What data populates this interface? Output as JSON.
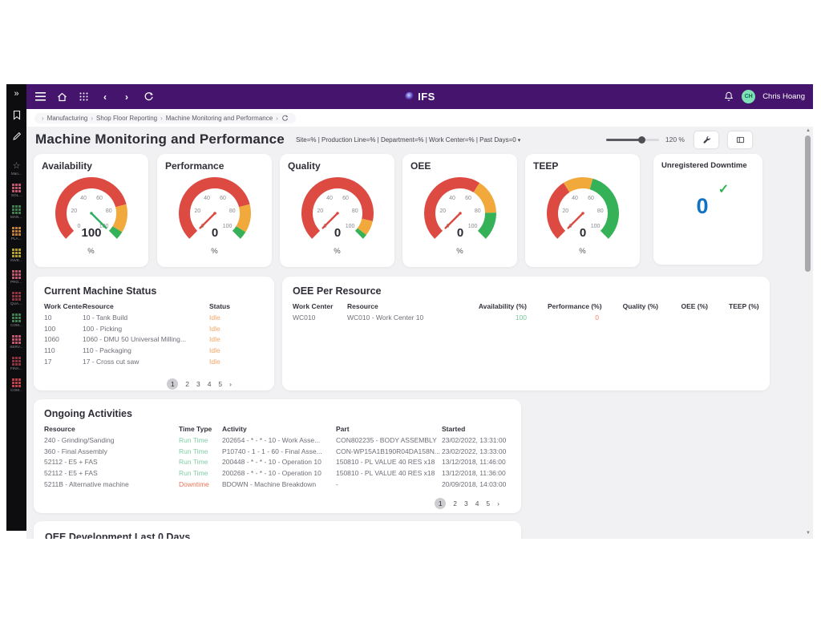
{
  "topbar": {
    "brand": "IFS",
    "user_initials": "CH",
    "user_name": "Chris Hoang"
  },
  "breadcrumb": {
    "separator": "›",
    "items": [
      "Manufacturing",
      "Shop Floor Reporting",
      "Machine Monitoring and Performance"
    ]
  },
  "header": {
    "title": "Machine Monitoring and Performance",
    "filters": "Site=% | Production Line=% | Department=% | Work Center=% | Past Days=0",
    "filters_caret": "▾",
    "zoom_label": "120 %"
  },
  "sidebar": {
    "expand_icon": "»",
    "items": [
      {
        "label": "Man...",
        "icon": "star",
        "color": "#9a9aa0"
      },
      {
        "label": "SOL...",
        "icon": "grid",
        "color": "#c2566e"
      },
      {
        "label": "MAN...",
        "icon": "grid",
        "color": "#3f7f50"
      },
      {
        "label": "PLA...",
        "icon": "grid",
        "color": "#bf7e33"
      },
      {
        "label": "INVE...",
        "icon": "grid",
        "color": "#b3a02b"
      },
      {
        "label": "PRO...",
        "icon": "grid",
        "color": "#c2566e"
      },
      {
        "label": "QUA...",
        "icon": "grid",
        "color": "#8e3140"
      },
      {
        "label": "COM...",
        "icon": "grid",
        "color": "#3f7f50"
      },
      {
        "label": "SERV...",
        "icon": "grid",
        "color": "#c2566e"
      },
      {
        "label": "FINA...",
        "icon": "grid",
        "color": "#8e3140"
      },
      {
        "label": "COM...",
        "icon": "grid",
        "color": "#bf4048"
      }
    ]
  },
  "chart_data": [
    {
      "type": "gauge",
      "title": "Availability",
      "value": 100,
      "unit": "%",
      "min": 0,
      "max": 100,
      "ticks": [
        0,
        20,
        40,
        60,
        80,
        100
      ],
      "needle_color": "#2eae5f",
      "bands": [
        {
          "from": 0,
          "to": 78,
          "color": "#dc4a41"
        },
        {
          "from": 78,
          "to": 95,
          "color": "#f2a93b"
        },
        {
          "from": 95,
          "to": 100,
          "color": "#35b257"
        }
      ]
    },
    {
      "type": "gauge",
      "title": "Performance",
      "value": 0,
      "unit": "%",
      "min": 0,
      "max": 100,
      "ticks": [
        0,
        20,
        40,
        60,
        80,
        100
      ],
      "needle_color": "#dc4a41",
      "bands": [
        {
          "from": 0,
          "to": 78,
          "color": "#dc4a41"
        },
        {
          "from": 78,
          "to": 95,
          "color": "#f2a93b"
        },
        {
          "from": 95,
          "to": 100,
          "color": "#35b257"
        }
      ]
    },
    {
      "type": "gauge",
      "title": "Quality",
      "value": 0,
      "unit": "%",
      "min": 0,
      "max": 100,
      "ticks": [
        0,
        20,
        40,
        60,
        80,
        100
      ],
      "needle_color": "#dc4a41",
      "bands": [
        {
          "from": 0,
          "to": 88,
          "color": "#dc4a41"
        },
        {
          "from": 88,
          "to": 97,
          "color": "#f2a93b"
        },
        {
          "from": 97,
          "to": 100,
          "color": "#35b257"
        }
      ]
    },
    {
      "type": "gauge",
      "title": "OEE",
      "value": 0,
      "unit": "%",
      "min": 0,
      "max": 100,
      "ticks": [
        0,
        20,
        40,
        60,
        80,
        100
      ],
      "needle_color": "#dc4a41",
      "bands": [
        {
          "from": 0,
          "to": 62,
          "color": "#dc4a41"
        },
        {
          "from": 62,
          "to": 83,
          "color": "#f2a93b"
        },
        {
          "from": 83,
          "to": 100,
          "color": "#35b257"
        }
      ]
    },
    {
      "type": "gauge",
      "title": "TEEP",
      "value": 0,
      "unit": "%",
      "min": 0,
      "max": 100,
      "ticks": [
        0,
        20,
        40,
        60,
        80,
        100
      ],
      "needle_color": "#dc4a41",
      "bands": [
        {
          "from": 0,
          "to": 38,
          "color": "#dc4a41"
        },
        {
          "from": 38,
          "to": 56,
          "color": "#f2a93b"
        },
        {
          "from": 56,
          "to": 100,
          "color": "#35b257"
        }
      ]
    }
  ],
  "unregistered_downtime": {
    "title": "Unregistered Downtime",
    "value": "0",
    "check_icon": "✓",
    "value_color": "#1273c4",
    "check_color": "#35b257"
  },
  "cards": {
    "machine_status": {
      "title": "Current Machine Status",
      "columns": [
        "Work Center",
        "Resource",
        "Status"
      ],
      "rows": [
        [
          "10",
          "10 - Tank Build",
          "Idle"
        ],
        [
          "100",
          "100 - Picking",
          "Idle"
        ],
        [
          "1060",
          "1060 - DMU 50 Universal Milling...",
          "Idle"
        ],
        [
          "110",
          "110 - Packaging",
          "Idle"
        ],
        [
          "17",
          "17 - Cross cut saw",
          "Idle"
        ]
      ],
      "pagination": {
        "pages": [
          "1",
          "2",
          "3",
          "4",
          "5"
        ],
        "active": "1",
        "next": "›"
      }
    },
    "oee_per_resource": {
      "title": "OEE Per Resource",
      "columns": [
        "Work Center",
        "Resource",
        "Availability (%)",
        "Performance (%)",
        "Quality (%)",
        "OEE (%)",
        "TEEP (%)"
      ],
      "rows": [
        [
          "WC010",
          "WC010 - Work Center 10",
          "100",
          "0",
          "",
          "",
          ""
        ]
      ]
    },
    "ongoing_activities": {
      "title": "Ongoing Activities",
      "columns": [
        "Resource",
        "Time Type",
        "Activity",
        "Part",
        "Started"
      ],
      "rows": [
        [
          "240 - Grinding/Sanding",
          "Run Time",
          "202654 - * - * - 10 - Work Asse...",
          "CON802235 - BODY ASSEMBLY",
          "23/02/2022, 13:31:00"
        ],
        [
          "360 - Final Assembly",
          "Run Time",
          "P10740 - 1 - 1 - 60 - Final Asse...",
          "CON-WP15A1B190R04DA158N...",
          "23/02/2022, 13:33:00"
        ],
        [
          "52112 - E5 + FAS",
          "Run Time",
          "200448 - * - * - 10 - Operation 10",
          "150810 - PL VALUE 40 RES x18",
          "13/12/2018, 11:46:00"
        ],
        [
          "52112 - E5 + FAS",
          "Run Time",
          "200268 - * - * - 10 - Operation 10",
          "150810 - PL VALUE 40 RES x18",
          "13/12/2018, 11:36:00"
        ],
        [
          "5211B - Alternative machine",
          "Downtime",
          "BDOWN - Machine Breakdown",
          "-",
          "20/09/2018, 14:03:00"
        ]
      ],
      "pagination": {
        "pages": [
          "1",
          "2",
          "3",
          "4",
          "5"
        ],
        "active": "1",
        "next": "›"
      }
    },
    "oee_development": {
      "title": "OEE Development Last 0 Days"
    }
  },
  "colors": {
    "idle": "#f0a868",
    "run_time": "#7fcfa5",
    "downtime": "#e8765a",
    "positive": "#74c796",
    "negative": "#ee8566"
  }
}
